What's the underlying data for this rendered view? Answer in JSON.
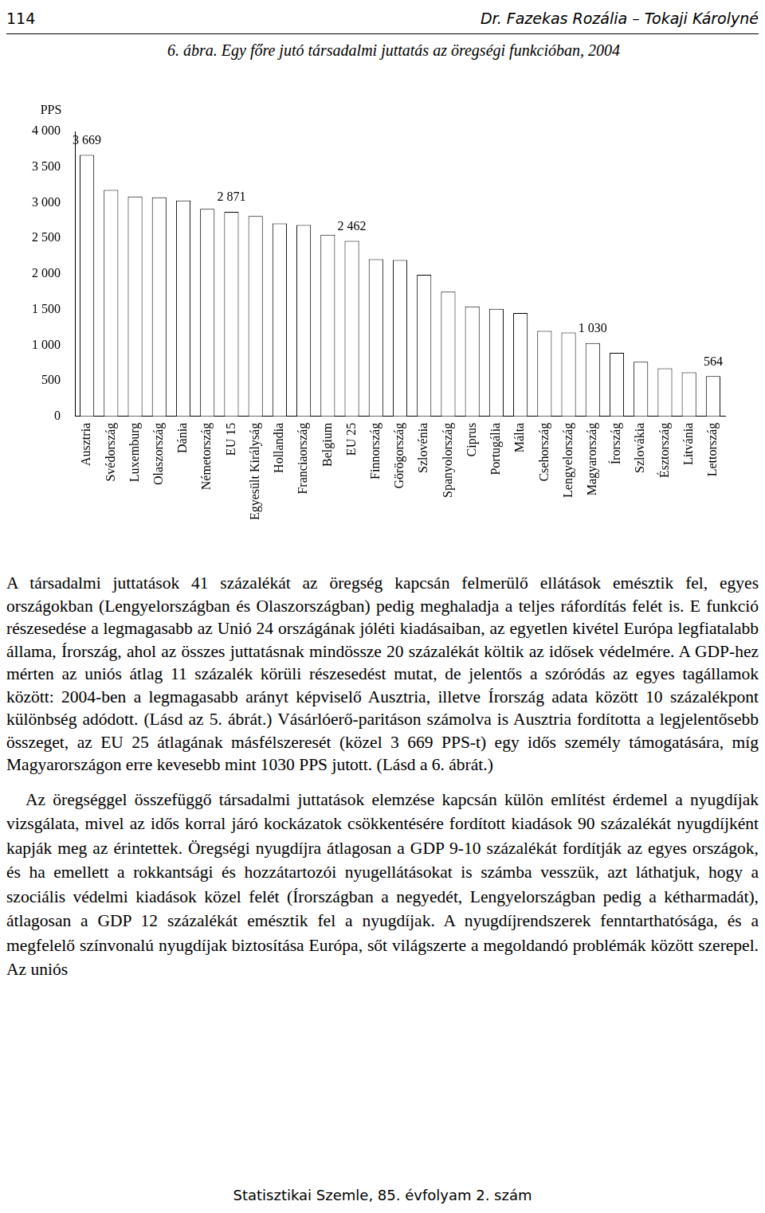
{
  "header": {
    "page_number": "114",
    "authors": "Dr. Fazekas Rozália – Tokaji Károlyné"
  },
  "chart_data": {
    "type": "bar",
    "title": "6. ábra. Egy főre jutó társadalmi juttatás az öregségi funkcióban, 2004",
    "ylabel": "PPS",
    "categories": [
      "Ausztria",
      "Svédország",
      "Luxemburg",
      "Olaszország",
      "Dánia",
      "Németország",
      "EU 15",
      "Egyesült Királyság",
      "Hollandia",
      "Franciaország",
      "Belgium",
      "EU 25",
      "Finnország",
      "Görögország",
      "Szlovénia",
      "Spanyolország",
      "Ciprus",
      "Portugália",
      "Málta",
      "Csehország",
      "Lengyelország",
      "Magyarország",
      "Írország",
      "Szlovákia",
      "Észtország",
      "Litvánia",
      "Lettország"
    ],
    "values": [
      3669,
      3178,
      3086,
      3075,
      3029,
      2914,
      2871,
      2812,
      2709,
      2686,
      2549,
      2462,
      2206,
      2194,
      1989,
      1749,
      1543,
      1509,
      1452,
      1200,
      1177,
      1030,
      892,
      766,
      674,
      617,
      564
    ],
    "value_labels": [
      "3 669",
      null,
      null,
      null,
      null,
      null,
      "2 871",
      null,
      null,
      null,
      null,
      "2 462",
      null,
      null,
      null,
      null,
      null,
      null,
      null,
      null,
      null,
      "1 030",
      null,
      null,
      null,
      null,
      "564"
    ],
    "data_labels": true,
    "color": "#ffffff",
    "ylim": [
      0,
      4000
    ],
    "yticks": [
      0,
      {
        "value": 500,
        "label": "500"
      },
      {
        "value": 1000,
        "label": "1 000"
      },
      {
        "value": 1500,
        "label": "1 500"
      },
      {
        "value": 2000,
        "label": "2 000"
      },
      {
        "value": 2500,
        "label": "2 500"
      },
      {
        "value": 3000,
        "label": "3 000"
      },
      {
        "value": 3500,
        "label": "3 500"
      },
      {
        "value": 4000,
        "label": "4 000"
      }
    ],
    "grid": false
  },
  "paragraphs": [
    "A társadalmi juttatások 41 százalékát az öregség kapcsán felmerülő ellátások emésztik fel, egyes országokban (Lengyelországban és Olaszországban) pedig meghaladja a teljes ráfordítás felét is. E funkció részesedése a legmagasabb az Unió 24 országának jóléti kiadásaiban, az egyetlen kivétel Európa legfiatalabb állama, Írország, ahol az összes juttatásnak mindössze 20 százalékát költik az idősek védelmére. A GDP-hez mérten az uniós átlag 11 százalék körüli részesedést mutat, de jelentős a szóródás az egyes tagállamok között: 2004-ben a legmagasabb arányt képviselő Ausztria, illetve Írország adata között 10 százalékpont különbség adódott. (Lásd az 5. ábrát.) Vásárlóerő-paritáson számolva is Ausztria fordította a legjelentősebb összeget, az EU 25 átlagának másfélszeresét (közel 3 669 PPS-t) egy idős személy támogatására, míg Magyarországon erre kevesebb mint 1030 PPS jutott. (Lásd a 6. ábrát.)",
    "Az öregséggel összefüggő társadalmi juttatások elemzése kapcsán külön említést érdemel a nyugdíjak vizsgálata, mivel az idős korral járó kockázatok csökkentésére fordított kiadások 90 százalékát nyugdíjként kapják meg az érintettek. Öregségi nyugdíjra átlagosan a GDP 9-10 százalékát fordítják az egyes országok, és ha emellett a rokkantsági és hozzátartozói nyugellátásokat is számba vesszük, azt láthatjuk, hogy a szociális védelmi kiadások közel felét (Írországban a negyedét, Lengyelországban pedig a kétharmadát), átlagosan a GDP 12 százalékát emésztik fel a nyugdíjak. A nyugdíjrendszerek fenntarthatósága, és a megfelelő színvonalú nyugdíjak biztosítása Európa, sőt világszerte a megoldandó problémák között szerepel. Az uniós"
  ],
  "footer": "Statisztikai Szemle, 85. évfolyam 2. szám"
}
